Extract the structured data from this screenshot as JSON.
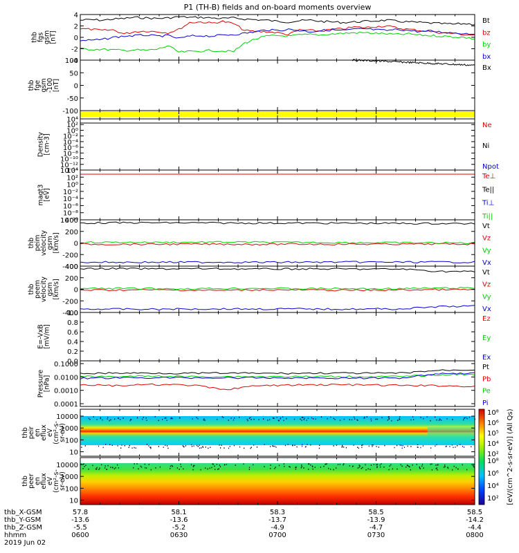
{
  "chart_data": {
    "type": "line",
    "title": "P1 (TH-B) fields and on-board moments overview",
    "date": "2019 Jun 02",
    "colors": {
      "black": "#000000",
      "red": "#e00000",
      "green": "#00d000",
      "blue": "#0000d0",
      "yellow": "#ffff00"
    },
    "panels": [
      {
        "id": "fgs",
        "ylabel": [
          "thb",
          "fgs",
          "gsm",
          "[nT]"
        ],
        "yticks": [
          "4",
          "2",
          "0",
          "-2",
          "-4"
        ],
        "ylim": [
          -4,
          4
        ],
        "series": [
          {
            "name": "Bt",
            "color": "#000000",
            "values": [
              3.0,
              3.1,
              3.0,
              3.2,
              3.3,
              3.5,
              3.4,
              3.3,
              3.4,
              3.6,
              3.5,
              3.5,
              3.4,
              3.3,
              3.4,
              3.2,
              3.1,
              3.0,
              2.8,
              2.7,
              2.9,
              3.0,
              2.8,
              2.7,
              2.6,
              2.7,
              2.8,
              2.9,
              3.0,
              2.8,
              2.7,
              2.6,
              2.5,
              2.4,
              2.3,
              2.4,
              2.3
            ]
          },
          {
            "name": "bz",
            "color": "#e00000",
            "values": [
              1.5,
              1.4,
              1.2,
              1.3,
              0.6,
              1.0,
              1.1,
              1.0,
              0.8,
              1.4,
              2.6,
              2.7,
              2.5,
              2.8,
              2.4,
              1.2,
              1.0,
              1.0,
              0.8,
              0.5,
              1.3,
              1.2,
              1.1,
              1.4,
              1.5,
              1.8,
              1.7,
              1.9,
              2.0,
              1.6,
              1.4,
              1.2,
              1.0,
              0.8,
              0.7,
              0.5,
              0.4
            ]
          },
          {
            "name": "by",
            "color": "#00d000",
            "values": [
              -2.0,
              -2.1,
              -2.1,
              -2.2,
              -2.3,
              -2.2,
              -2.3,
              -2.1,
              -1.5,
              -2.6,
              -2.5,
              -2.4,
              -2.3,
              -2.4,
              -2.5,
              -1.0,
              -0.3,
              0.2,
              0.3,
              0.2,
              0.4,
              0.5,
              0.4,
              0.6,
              0.7,
              0.8,
              0.8,
              0.7,
              0.6,
              0.5,
              0.6,
              0.4,
              0.3,
              0.2,
              0.1,
              0.0,
              -0.3
            ]
          },
          {
            "name": "bx",
            "color": "#0000d0",
            "values": [
              -0.6,
              -0.5,
              -0.4,
              0.0,
              0.2,
              0.3,
              0.4,
              0.2,
              0.3,
              -0.2,
              0.2,
              0.3,
              0.2,
              0.4,
              0.5,
              0.7,
              1.0,
              1.3,
              1.2,
              1.4,
              1.2,
              1.0,
              1.2,
              1.3,
              1.2,
              1.4,
              1.5,
              1.3,
              1.2,
              1.4,
              1.2,
              1.0,
              1.1,
              0.9,
              0.8,
              0.7,
              0.6
            ]
          }
        ]
      },
      {
        "id": "fge",
        "ylabel": [
          "thb",
          "fge",
          "gsm",
          "-100",
          "[nT]"
        ],
        "yticks": [
          "100",
          "50",
          "0",
          "-50",
          "-100"
        ],
        "ylim": [
          -125,
          100
        ],
        "series": [
          {
            "name": "Bx",
            "color": "#000000",
            "x_start": 0.69,
            "values": [
              100,
              99,
              97,
              95,
              93,
              91,
              89,
              87,
              85,
              83,
              81,
              79,
              77
            ]
          }
        ]
      },
      {
        "id": "flag",
        "series": []
      },
      {
        "id": "density",
        "ylabel": [
          "Density",
          "[cm-3]"
        ],
        "yticks": [
          "10⁴",
          "10²",
          "10⁰",
          "10⁻²",
          "10⁻⁴",
          "10⁻⁶",
          "10⁻⁸",
          "10⁻¹⁰",
          "10⁻¹²",
          "10⁻¹⁴"
        ],
        "series": [
          {
            "name": "Ne",
            "color": "#e00000",
            "values": [
              1.0,
              1.0,
              1.0
            ]
          },
          {
            "name": "Ni",
            "color": "#000000",
            "values": [
              1.0,
              1.0,
              1.0
            ]
          },
          {
            "name": "Npot",
            "color": "#0000d0",
            "values": []
          }
        ]
      },
      {
        "id": "temp",
        "ylabel": [
          "magt3",
          "[eV]"
        ],
        "yticks": [
          "10⁴",
          "10²",
          "10⁰",
          "10⁻²",
          "10⁻⁴",
          "10⁻⁶",
          "10⁻⁸",
          "10⁻¹⁰"
        ],
        "series": [
          {
            "name": "Te⊥",
            "color": "#e00000",
            "values": [
              1.0,
              1.0,
              1.0
            ]
          },
          {
            "name": "Te||",
            "color": "#000000",
            "values": []
          },
          {
            "name": "Ti⊥",
            "color": "#0000d0",
            "values": []
          },
          {
            "name": "Ti||",
            "color": "#00d000",
            "values": []
          }
        ]
      },
      {
        "id": "peim",
        "ylabel": [
          "thb",
          "peim",
          "velocity",
          "gsm",
          "[km/s]"
        ],
        "yticks": [
          "400",
          "200",
          "0",
          "-200",
          "-400"
        ],
        "ylim": [
          -400,
          400
        ],
        "series": [
          {
            "name": "Vt",
            "color": "#000000",
            "values": [
              345,
              348,
              350,
              347,
              345,
              344,
              343,
              342,
              340,
              338,
              336,
              335
            ]
          },
          {
            "name": "Vz",
            "color": "#e00000",
            "values": [
              -20,
              -22,
              -21,
              -20,
              -19,
              -22,
              -18,
              -21,
              -20,
              -19,
              -18,
              -18
            ]
          },
          {
            "name": "Vy",
            "color": "#00d000",
            "values": [
              10,
              12,
              11,
              13,
              15,
              12,
              10,
              8,
              6,
              4,
              2,
              0
            ]
          },
          {
            "name": "Vx",
            "color": "#0000d0",
            "values": [
              -330,
              -332,
              -333,
              -332,
              -331,
              -333,
              -332,
              -331,
              -330,
              -331,
              -330,
              -330
            ]
          }
        ]
      },
      {
        "id": "peem",
        "ylabel": [
          "thb",
          "peem",
          "velocity",
          "gsm",
          "[km/s]"
        ],
        "yticks": [
          "400",
          "200",
          "0",
          "-200",
          "-400"
        ],
        "ylim": [
          -400,
          400
        ],
        "series": [
          {
            "name": "Vt",
            "color": "#000000",
            "values": [
              355,
              357,
              352,
              356,
              354,
              350,
              352,
              351,
              349,
              348,
              310,
              305
            ]
          },
          {
            "name": "Vz",
            "color": "#e00000",
            "values": [
              -15,
              -12,
              -10,
              -14,
              -20,
              -8,
              -12,
              -15,
              -18,
              -10,
              -5,
              -8
            ]
          },
          {
            "name": "Vy",
            "color": "#00d000",
            "values": [
              10,
              15,
              12,
              8,
              14,
              18,
              10,
              12,
              8,
              12,
              20,
              22
            ]
          },
          {
            "name": "Vx",
            "color": "#0000d0",
            "values": [
              -340,
              -342,
              -345,
              -340,
              -338,
              -341,
              -339,
              -342,
              -340,
              -338,
              -300,
              -290
            ]
          }
        ]
      },
      {
        "id": "efield",
        "ylabel": [
          "E=-VxB",
          "[mV/m]"
        ],
        "yticks": [
          "1.0",
          "0.8",
          "0.6",
          "0.4",
          "0.2",
          "0.0"
        ],
        "series": [
          {
            "name": "Ez",
            "color": "#e00000",
            "values": []
          },
          {
            "name": "Ey",
            "color": "#00d000",
            "values": []
          },
          {
            "name": "Ex",
            "color": "#0000d0",
            "values": []
          }
        ]
      },
      {
        "id": "pressure",
        "ylabel": [
          "Pressure",
          "[nPa]"
        ],
        "yticks": [
          "0.1000",
          "0.0100",
          "0.0010",
          "0.0001"
        ],
        "series": [
          {
            "name": "Pt",
            "color": "#000000",
            "values": [
              0.021,
              0.022,
              0.022,
              0.021,
              0.022,
              0.021,
              0.021,
              0.022,
              0.021,
              0.022,
              0.035,
              0.04
            ]
          },
          {
            "name": "Pb",
            "color": "#e00000",
            "values": [
              0.003,
              0.0025,
              0.003,
              0.0028,
              0.0012,
              0.0025,
              0.0028,
              0.003,
              0.0028,
              0.0026,
              0.0025,
              0.0022
            ]
          },
          {
            "name": "Pe",
            "color": "#00d000",
            "values": [
              0.012,
              0.012,
              0.013,
              0.012,
              0.012,
              0.012,
              0.012,
              0.012,
              0.012,
              0.012,
              0.016,
              0.018
            ]
          },
          {
            "name": "Pi",
            "color": "#0000d0",
            "values": [
              0.009,
              0.0095,
              0.01,
              0.0098,
              0.0097,
              0.0096,
              0.0095,
              0.0094,
              0.0093,
              0.0095,
              0.02,
              0.022
            ]
          }
        ]
      },
      {
        "id": "peir",
        "ylabel": [
          "thb",
          "peir",
          "en",
          "eflux",
          "eV",
          "(cm²-s-",
          "sr-eV)"
        ],
        "yticks": [
          "10000",
          "1000",
          "100",
          "10"
        ],
        "type": "heatmap"
      },
      {
        "id": "peer",
        "ylabel": [
          "thb",
          "peer",
          "en",
          "eflux",
          "eV",
          "(cm²-s-",
          "sr-eV)"
        ],
        "yticks": [
          "10000",
          "1000",
          "100",
          "10"
        ],
        "type": "heatmap"
      }
    ],
    "colorbar": {
      "title": "[eV/(cm^2-s-sr-eV)] (All Qs)",
      "ticks": [
        "10⁸",
        "10⁷",
        "10⁶",
        "10⁵",
        "10⁴",
        "10³"
      ],
      "upper_ticks": [
        "10⁸",
        "10⁶",
        "10⁵",
        "10⁴",
        "10²"
      ],
      "lower_ticks": [
        "10⁸",
        "10⁶",
        "10⁴",
        "10²"
      ]
    },
    "x_axis": {
      "row_labels": [
        "thb_X-GSM",
        "thb_Y-GSM",
        "thb_Z-GSM",
        "hhmm"
      ],
      "columns": [
        [
          "57.8",
          "-13.6",
          "-5.5",
          "0600"
        ],
        [
          "58.1",
          "-13.6",
          "-5.2",
          "0630"
        ],
        [
          "58.3",
          "-13.7",
          "-4.9",
          "0700"
        ],
        [
          "58.5",
          "-13.9",
          "-4.7",
          "0730"
        ],
        [
          "58.5",
          "-14.2",
          "-4.4",
          "0800"
        ]
      ]
    }
  }
}
